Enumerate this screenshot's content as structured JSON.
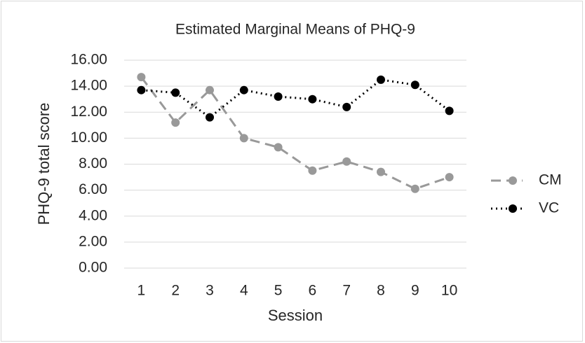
{
  "chart_data": {
    "type": "line",
    "title": "Estimated Marginal Means of PHQ-9",
    "x_label": "Session",
    "y_label": "PHQ-9 total score",
    "categories": [
      "1",
      "2",
      "3",
      "4",
      "5",
      "6",
      "7",
      "8",
      "9",
      "10"
    ],
    "series": [
      {
        "name": "CM",
        "color": "#999999",
        "dash": "dashed",
        "values": [
          14.7,
          11.2,
          13.7,
          10.0,
          9.3,
          7.5,
          8.2,
          7.4,
          6.1,
          7.0
        ]
      },
      {
        "name": "VC",
        "color": "#000000",
        "dash": "dotted",
        "values": [
          13.7,
          13.5,
          11.6,
          13.7,
          13.2,
          13.0,
          12.4,
          14.5,
          14.1,
          12.1
        ]
      }
    ],
    "ylim": [
      0,
      16
    ],
    "yticks": [
      {
        "value": 0,
        "label": "0.00"
      },
      {
        "value": 2,
        "label": "2.00"
      },
      {
        "value": 4,
        "label": "4.00"
      },
      {
        "value": 6,
        "label": "6.00"
      },
      {
        "value": 8,
        "label": "8.00"
      },
      {
        "value": 10,
        "label": "10.00"
      },
      {
        "value": 12,
        "label": "12.00"
      },
      {
        "value": 14,
        "label": "14.00"
      },
      {
        "value": 16,
        "label": "16.00"
      }
    ],
    "grid": true,
    "legend": "right"
  }
}
